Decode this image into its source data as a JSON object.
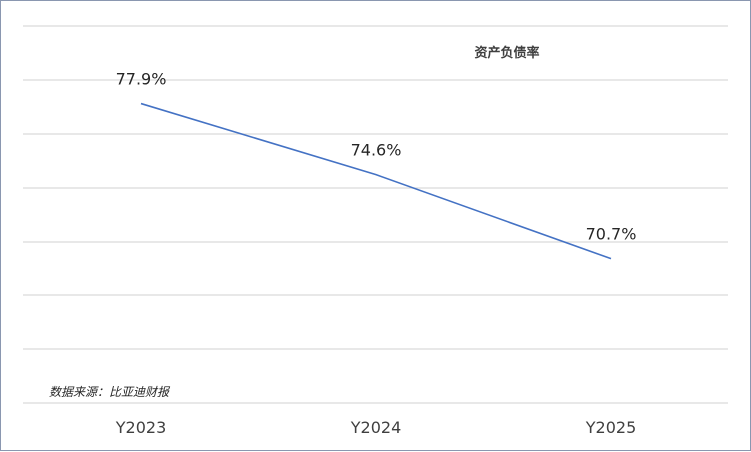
{
  "chart_data": {
    "type": "line",
    "title": "资产负债率",
    "categories": [
      "Y2023",
      "Y2024",
      "Y2025"
    ],
    "series": [
      {
        "values": [
          77.9,
          74.6,
          70.7
        ],
        "labels": [
          "77.9%",
          "74.6%",
          "70.7%"
        ]
      }
    ],
    "ylim": [
      64.0,
      81.5
    ],
    "grid": true,
    "legend": "none",
    "colors": {
      "line": "#4472c4",
      "grid": "#d9d9d9"
    }
  },
  "source_note": "数据来源：比亚迪财报"
}
